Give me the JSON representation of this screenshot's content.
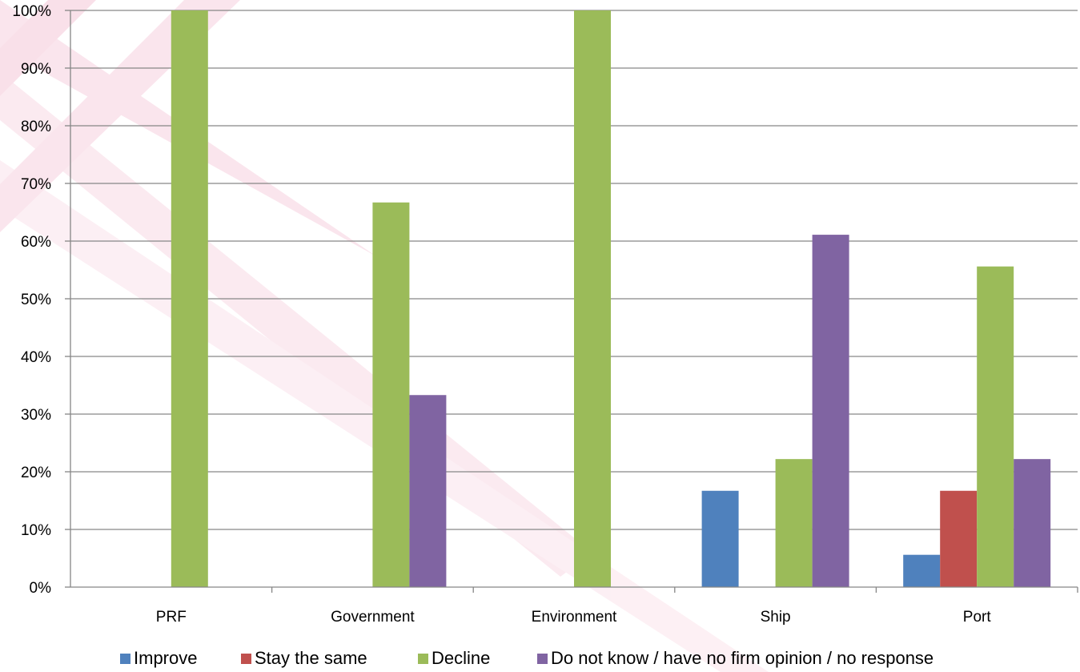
{
  "chart_data": {
    "type": "bar",
    "title": "",
    "xlabel": "",
    "ylabel": "",
    "categories": [
      "PRF",
      "Government",
      "Environment",
      "Ship",
      "Port"
    ],
    "series": [
      {
        "name": "Improve",
        "color": "#4f81bd",
        "values": [
          0,
          0,
          0,
          16.7,
          5.6
        ]
      },
      {
        "name": "Stay the same",
        "color": "#c0504d",
        "values": [
          0,
          0,
          0,
          0,
          16.7
        ]
      },
      {
        "name": "Decline",
        "color": "#9bbb59",
        "values": [
          100,
          66.7,
          100,
          22.2,
          55.6
        ]
      },
      {
        "name": "Do not know / have no firm opinion / no response",
        "color": "#8064a2",
        "values": [
          0,
          33.3,
          0,
          61.1,
          22.2
        ]
      }
    ],
    "ylim": [
      0,
      100
    ],
    "yticks": [
      "0%",
      "10%",
      "20%",
      "30%",
      "40%",
      "50%",
      "60%",
      "70%",
      "80%",
      "90%",
      "100%"
    ],
    "grid": true,
    "legend_position": "bottom"
  }
}
